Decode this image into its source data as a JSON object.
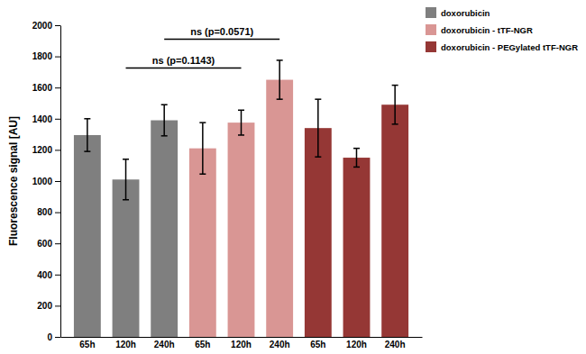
{
  "chart_data": {
    "type": "bar",
    "y_label": "Fluorescence signal [AU]",
    "categories": [
      "65h",
      "120h",
      "240h",
      "65h",
      "120h",
      "240h",
      "65h",
      "120h",
      "240h"
    ],
    "series": [
      {
        "name": "doxorubicin",
        "color": "#7f7f7f",
        "values": [
          1295,
          1010,
          1390,
          null,
          null,
          null,
          null,
          null,
          null
        ],
        "errors": [
          105,
          130,
          100,
          null,
          null,
          null,
          null,
          null,
          null
        ]
      },
      {
        "name": "doxorubicin - tTF-NGR",
        "color": "#d99694",
        "values": [
          null,
          null,
          null,
          1210,
          1375,
          1650,
          null,
          null,
          null
        ],
        "errors": [
          null,
          null,
          null,
          165,
          80,
          125,
          null,
          null,
          null
        ]
      },
      {
        "name": "doxorubicin - PEGylated tTF-NGR",
        "color": "#953735",
        "values": [
          null,
          null,
          null,
          null,
          null,
          null,
          1340,
          1150,
          1490
        ],
        "errors": [
          null,
          null,
          null,
          null,
          null,
          null,
          185,
          60,
          125
        ]
      }
    ],
    "annotations": [
      {
        "text": "ns (p=0.1143)",
        "x": [
          1,
          4
        ],
        "y": 1725
      },
      {
        "text": "ns (p=0.0571)",
        "x": [
          2,
          5
        ],
        "y": 1910
      }
    ],
    "ylim": [
      0,
      2000
    ],
    "yticks": [
      0,
      200,
      400,
      600,
      800,
      1000,
      1200,
      1400,
      1600,
      1800,
      2000
    ],
    "grid": false,
    "legend": "top-right"
  }
}
